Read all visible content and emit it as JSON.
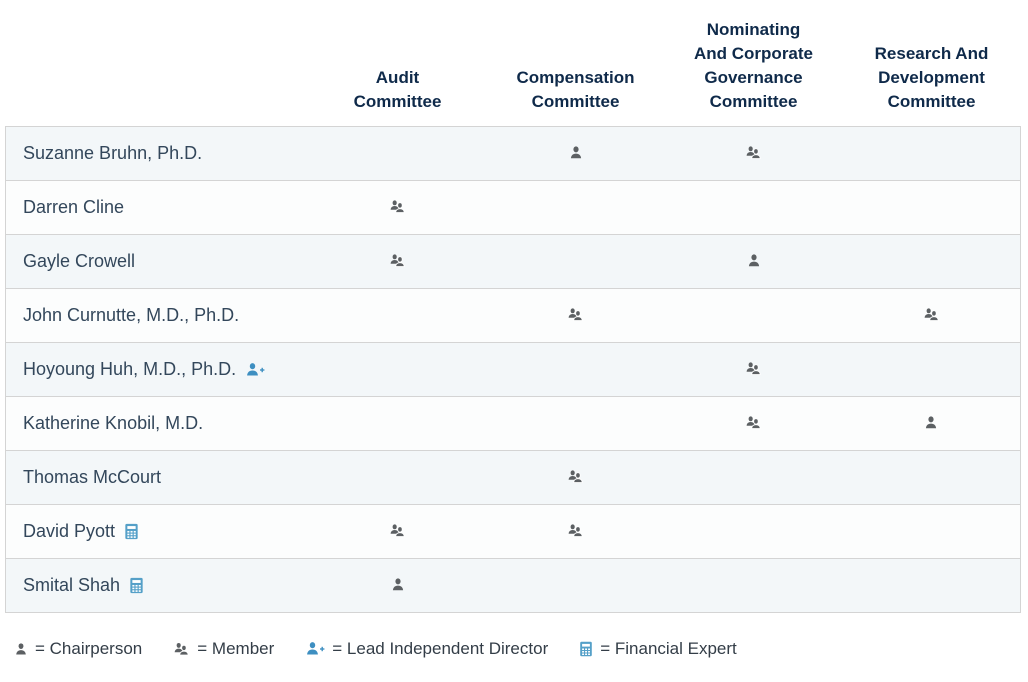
{
  "table": {
    "name_column_header": "",
    "columns": [
      "Audit\nCommittee",
      "Compensation\nCommittee",
      "Nominating\nAnd Corporate\nGovernance\nCommittee",
      "Research And\nDevelopment\nCommittee"
    ],
    "rows": [
      {
        "name": "Suzanne Bruhn, Ph.D.",
        "badge": null,
        "memberships": [
          "",
          "chair",
          "member",
          ""
        ]
      },
      {
        "name": "Darren Cline",
        "badge": null,
        "memberships": [
          "member",
          "",
          "",
          ""
        ]
      },
      {
        "name": "Gayle Crowell",
        "badge": null,
        "memberships": [
          "member",
          "",
          "chair",
          ""
        ]
      },
      {
        "name": "John Curnutte, M.D., Ph.D.",
        "badge": null,
        "memberships": [
          "",
          "member",
          "",
          "member"
        ]
      },
      {
        "name": "Hoyoung Huh, M.D., Ph.D.",
        "badge": "lead-independent-director",
        "memberships": [
          "",
          "",
          "member",
          ""
        ]
      },
      {
        "name": "Katherine Knobil, M.D.",
        "badge": null,
        "memberships": [
          "",
          "",
          "member",
          "chair"
        ]
      },
      {
        "name": "Thomas McCourt",
        "badge": null,
        "memberships": [
          "",
          "member",
          "",
          ""
        ]
      },
      {
        "name": "David Pyott",
        "badge": "financial-expert",
        "memberships": [
          "member",
          "member",
          "",
          ""
        ]
      },
      {
        "name": "Smital Shah",
        "badge": "financial-expert",
        "memberships": [
          "chair",
          "",
          "",
          ""
        ]
      }
    ]
  },
  "legend": [
    {
      "icon": "chairperson-icon",
      "label": "= Chairperson"
    },
    {
      "icon": "member-icon",
      "label": "= Member"
    },
    {
      "icon": "lead-independent-director-icon",
      "label": "= Lead Independent Director"
    },
    {
      "icon": "financial-expert-icon",
      "label": "= Financial Expert"
    }
  ],
  "colors": {
    "header_text": "#0f2a4a",
    "name_text": "#33475b",
    "legend_text": "#333d47",
    "icon_gray": "#5c6063",
    "icon_blue": "#3e8fc1",
    "icon_calc_blue": "#55a0c8",
    "row_odd_bg": "#f3f7f9",
    "row_even_bg": "#fcfdfd",
    "border": "#d4d4d4"
  }
}
